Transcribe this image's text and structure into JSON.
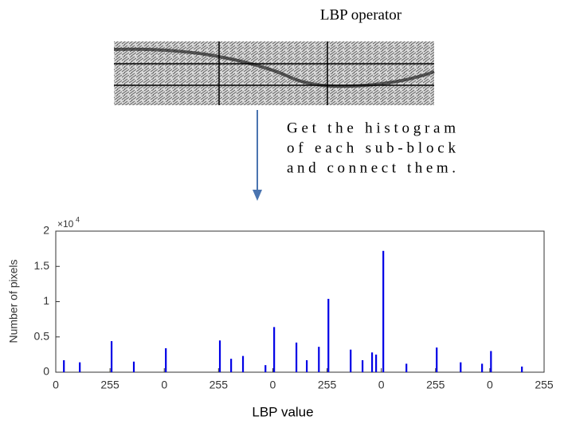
{
  "header": {
    "title": "LBP operator"
  },
  "caption": {
    "lines": [
      "Get the histogram",
      "of each sub-block",
      "and connect them."
    ]
  },
  "chart_data": {
    "type": "bar",
    "y_label": "Number of pixels",
    "x_label": "LBP value",
    "y_multiplier": "×10",
    "y_exponent": "4",
    "color": "#0000e6",
    "x": [
      38,
      113,
      263,
      368,
      519,
      774,
      827,
      883,
      989,
      1030,
      1135,
      1184,
      1241,
      1286,
      1391,
      1447,
      1492,
      1511,
      1545,
      1654,
      1797,
      1910,
      2011,
      2053,
      2199
    ],
    "values": [
      1700,
      1400,
      4400,
      1500,
      3400,
      4500,
      1900,
      2300,
      1000,
      6400,
      4200,
      1700,
      3600,
      10400,
      3200,
      1700,
      2800,
      2500,
      17200,
      1200,
      3500,
      1400,
      1200,
      3000,
      800
    ],
    "xlim": [
      0,
      2304
    ],
    "xticks": [
      0,
      {
        "value": 256,
        "label": "255"
      },
      {
        "value": 512,
        "label": "0"
      },
      {
        "value": 768,
        "label": "255"
      },
      {
        "value": 1024,
        "label": "0"
      },
      {
        "value": 1280,
        "label": "255"
      },
      {
        "value": 1536,
        "label": "0"
      },
      {
        "value": 1792,
        "label": "255"
      },
      {
        "value": 2048,
        "label": "0"
      },
      {
        "value": 2304,
        "label": "255"
      }
    ],
    "ylim": [
      0,
      20000
    ],
    "yticks": [
      0,
      {
        "value": 5000,
        "label": "0.5"
      },
      {
        "value": 10000,
        "label": "1"
      },
      {
        "value": 15000,
        "label": "1.5"
      },
      {
        "value": 20000,
        "label": "2"
      }
    ]
  }
}
